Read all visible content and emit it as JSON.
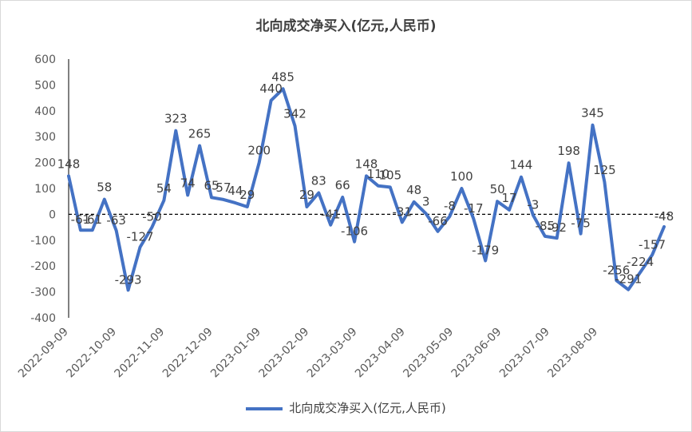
{
  "chart_data": {
    "type": "line",
    "title": "北向成交净买入(亿元,人民币)",
    "ylim": [
      -400,
      600
    ],
    "yticks": [
      -400,
      -300,
      -200,
      -100,
      0,
      100,
      200,
      300,
      400,
      500,
      600
    ],
    "xtick_labels": [
      "2022-09-09",
      "2022-10-09",
      "2022-11-09",
      "2022-12-09",
      "2023-01-09",
      "2023-02-09",
      "2023-03-09",
      "2023-04-09",
      "2023-05-09",
      "2023-06-09",
      "2023-07-09",
      "2023-08-09"
    ],
    "zero_line": "dashed",
    "legend_position": "bottom",
    "series": [
      {
        "name": "北向成交净买入(亿元,人民币)",
        "color": "#4472C4",
        "values": [
          148,
          -61,
          -61,
          58,
          -63,
          -293,
          -127,
          -50,
          54,
          323,
          74,
          265,
          65,
          57,
          44,
          29,
          200,
          440,
          485,
          342,
          29,
          83,
          -41,
          66,
          -106,
          148,
          110,
          105,
          -31,
          48,
          3,
          -66,
          -8,
          100,
          -17,
          -179,
          50,
          17,
          144,
          -3,
          -85,
          -92,
          198,
          -75,
          345,
          125,
          -256,
          -291,
          -224,
          -157,
          -48
        ]
      }
    ]
  }
}
